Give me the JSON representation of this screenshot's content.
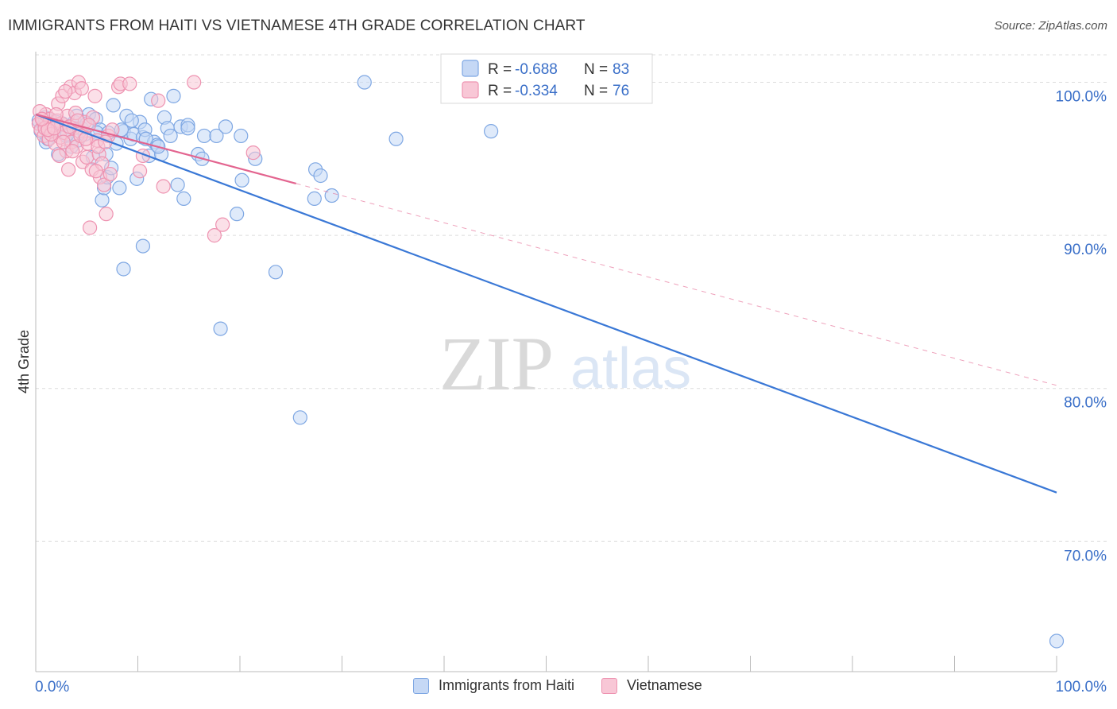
{
  "title": "IMMIGRANTS FROM HAITI VS VIETNAMESE 4TH GRADE CORRELATION CHART",
  "source": "Source: ZipAtlas.com",
  "watermark": {
    "zip": "ZIP",
    "atlas": "atlas"
  },
  "colors": {
    "blue_fill": "#c5d8f5",
    "blue_stroke": "#7ea7e3",
    "blue_line": "#3a78d6",
    "pink_fill": "#f8c7d6",
    "pink_stroke": "#ee93b1",
    "pink_line": "#e3648f",
    "value_text": "#3a6fc8",
    "grid": "#dcdcdc"
  },
  "legend": {
    "r_label": "R =",
    "n_label": "N =",
    "series": [
      {
        "r": "-0.688",
        "n": "83"
      },
      {
        "r": "-0.334",
        "n": "76"
      }
    ]
  },
  "chart_data": {
    "type": "scatter",
    "xlabel": "",
    "ylabel": "4th Grade",
    "xlim": [
      0,
      100
    ],
    "ylim": [
      61.5,
      102
    ],
    "x_tick_labels": [
      "0.0%",
      "100.0%"
    ],
    "y_ticks": [
      100,
      90,
      80,
      70
    ],
    "y_tick_labels": [
      "100.0%",
      "90.0%",
      "80.0%",
      "70.0%"
    ],
    "grid": true,
    "series": [
      {
        "name": "Immigrants from Haiti",
        "trend": {
          "x0": 0,
          "y0": 97.9,
          "x1": 100,
          "y1": 73.2,
          "solid_until": 100
        },
        "points": [
          [
            0.3,
            97.5
          ],
          [
            0.5,
            96.8
          ],
          [
            0.8,
            97.2
          ],
          [
            1.0,
            96.1
          ],
          [
            1.3,
            97.6
          ],
          [
            1.7,
            96.9
          ],
          [
            2.2,
            95.3
          ],
          [
            2.6,
            97.3
          ],
          [
            3.0,
            96.5
          ],
          [
            3.3,
            97.1
          ],
          [
            3.5,
            95.8
          ],
          [
            3.8,
            97.4
          ],
          [
            4.1,
            96.2
          ],
          [
            4.5,
            97.0
          ],
          [
            4.8,
            96.6
          ],
          [
            5.2,
            97.9
          ],
          [
            5.6,
            95.1
          ],
          [
            5.9,
            97.6
          ],
          [
            6.3,
            96.9
          ],
          [
            6.5,
            92.3
          ],
          [
            6.7,
            93.1
          ],
          [
            7.0,
            93.8
          ],
          [
            7.4,
            94.4
          ],
          [
            7.6,
            98.5
          ],
          [
            7.9,
            96.0
          ],
          [
            8.2,
            93.1
          ],
          [
            8.6,
            96.8
          ],
          [
            8.9,
            97.8
          ],
          [
            9.3,
            96.3
          ],
          [
            9.6,
            96.6
          ],
          [
            9.9,
            93.7
          ],
          [
            10.2,
            97.4
          ],
          [
            10.5,
            96.4
          ],
          [
            10.7,
            96.9
          ],
          [
            11.1,
            95.2
          ],
          [
            11.3,
            98.9
          ],
          [
            11.6,
            96.1
          ],
          [
            11.9,
            95.9
          ],
          [
            12.3,
            95.3
          ],
          [
            12.6,
            97.7
          ],
          [
            12.9,
            97.0
          ],
          [
            13.2,
            96.5
          ],
          [
            13.5,
            99.1
          ],
          [
            13.9,
            93.3
          ],
          [
            14.2,
            97.1
          ],
          [
            14.5,
            92.4
          ],
          [
            14.9,
            97.2
          ],
          [
            15.9,
            95.3
          ],
          [
            16.5,
            96.5
          ],
          [
            17.7,
            96.5
          ],
          [
            18.1,
            83.9
          ],
          [
            18.6,
            97.1
          ],
          [
            19.7,
            91.4
          ],
          [
            20.1,
            96.5
          ],
          [
            20.2,
            93.6
          ],
          [
            21.5,
            95.0
          ],
          [
            23.5,
            87.6
          ],
          [
            25.9,
            78.1
          ],
          [
            27.3,
            92.4
          ],
          [
            27.4,
            94.3
          ],
          [
            27.9,
            93.9
          ],
          [
            29.0,
            92.6
          ],
          [
            32.2,
            100.0
          ],
          [
            35.3,
            96.3
          ],
          [
            44.6,
            96.8
          ],
          [
            100.0,
            63.5
          ],
          [
            8.6,
            87.8
          ],
          [
            10.5,
            89.3
          ],
          [
            6.0,
            96.7
          ],
          [
            4.0,
            97.8
          ],
          [
            2.0,
            97.4
          ],
          [
            1.2,
            96.3
          ],
          [
            0.9,
            97.7
          ],
          [
            3.1,
            96.6
          ],
          [
            5.0,
            97.3
          ],
          [
            7.1,
            96.7
          ],
          [
            8.4,
            96.9
          ],
          [
            10.8,
            96.3
          ],
          [
            12.0,
            95.8
          ],
          [
            16.3,
            95.0
          ],
          [
            14.9,
            97.0
          ],
          [
            9.4,
            97.5
          ],
          [
            6.9,
            95.3
          ]
        ]
      },
      {
        "name": "Vietnamese",
        "trend": {
          "x0": 0,
          "y0": 97.9,
          "x1": 100,
          "y1": 80.2,
          "solid_until": 25.5
        },
        "points": [
          [
            0.3,
            97.3
          ],
          [
            0.5,
            96.9
          ],
          [
            0.7,
            97.5
          ],
          [
            0.8,
            96.5
          ],
          [
            1.0,
            97.9
          ],
          [
            1.1,
            97.1
          ],
          [
            1.3,
            96.3
          ],
          [
            1.4,
            97.6
          ],
          [
            1.6,
            96.8
          ],
          [
            1.7,
            97.2
          ],
          [
            1.9,
            96.0
          ],
          [
            2.1,
            97.5
          ],
          [
            2.2,
            98.6
          ],
          [
            2.4,
            96.4
          ],
          [
            2.5,
            97.3
          ],
          [
            2.6,
            99.1
          ],
          [
            2.8,
            96.7
          ],
          [
            3.0,
            95.5
          ],
          [
            3.1,
            97.8
          ],
          [
            3.2,
            94.3
          ],
          [
            3.4,
            99.7
          ],
          [
            3.5,
            96.1
          ],
          [
            3.7,
            97.0
          ],
          [
            3.8,
            99.3
          ],
          [
            4.0,
            95.8
          ],
          [
            4.2,
            100.0
          ],
          [
            4.3,
            96.8
          ],
          [
            4.5,
            99.6
          ],
          [
            4.6,
            94.8
          ],
          [
            4.8,
            97.4
          ],
          [
            5.0,
            95.1
          ],
          [
            5.1,
            96.0
          ],
          [
            5.3,
            90.5
          ],
          [
            5.5,
            94.3
          ],
          [
            5.6,
            97.7
          ],
          [
            5.8,
            99.1
          ],
          [
            6.0,
            96.2
          ],
          [
            6.2,
            95.3
          ],
          [
            6.3,
            93.8
          ],
          [
            6.5,
            94.7
          ],
          [
            6.7,
            93.3
          ],
          [
            6.9,
            91.4
          ],
          [
            7.1,
            96.5
          ],
          [
            7.3,
            94.0
          ],
          [
            8.1,
            99.7
          ],
          [
            8.3,
            99.9
          ],
          [
            9.2,
            99.9
          ],
          [
            10.2,
            94.2
          ],
          [
            10.5,
            95.2
          ],
          [
            12.0,
            98.8
          ],
          [
            12.5,
            93.2
          ],
          [
            15.5,
            100.0
          ],
          [
            17.5,
            90.0
          ],
          [
            18.3,
            90.7
          ],
          [
            21.3,
            95.4
          ],
          [
            0.4,
            98.1
          ],
          [
            0.9,
            97.0
          ],
          [
            1.5,
            96.6
          ],
          [
            2.0,
            97.9
          ],
          [
            2.7,
            96.1
          ],
          [
            3.3,
            97.1
          ],
          [
            3.9,
            98.0
          ],
          [
            4.4,
            96.5
          ],
          [
            5.2,
            97.2
          ],
          [
            6.1,
            95.8
          ],
          [
            7.5,
            96.9
          ],
          [
            2.3,
            95.2
          ],
          [
            1.2,
            96.9
          ],
          [
            0.6,
            97.6
          ],
          [
            3.6,
            95.5
          ],
          [
            4.9,
            96.3
          ],
          [
            5.9,
            94.2
          ],
          [
            6.8,
            96.1
          ],
          [
            4.1,
            97.5
          ],
          [
            1.8,
            97.0
          ],
          [
            2.9,
            99.4
          ]
        ]
      }
    ]
  }
}
